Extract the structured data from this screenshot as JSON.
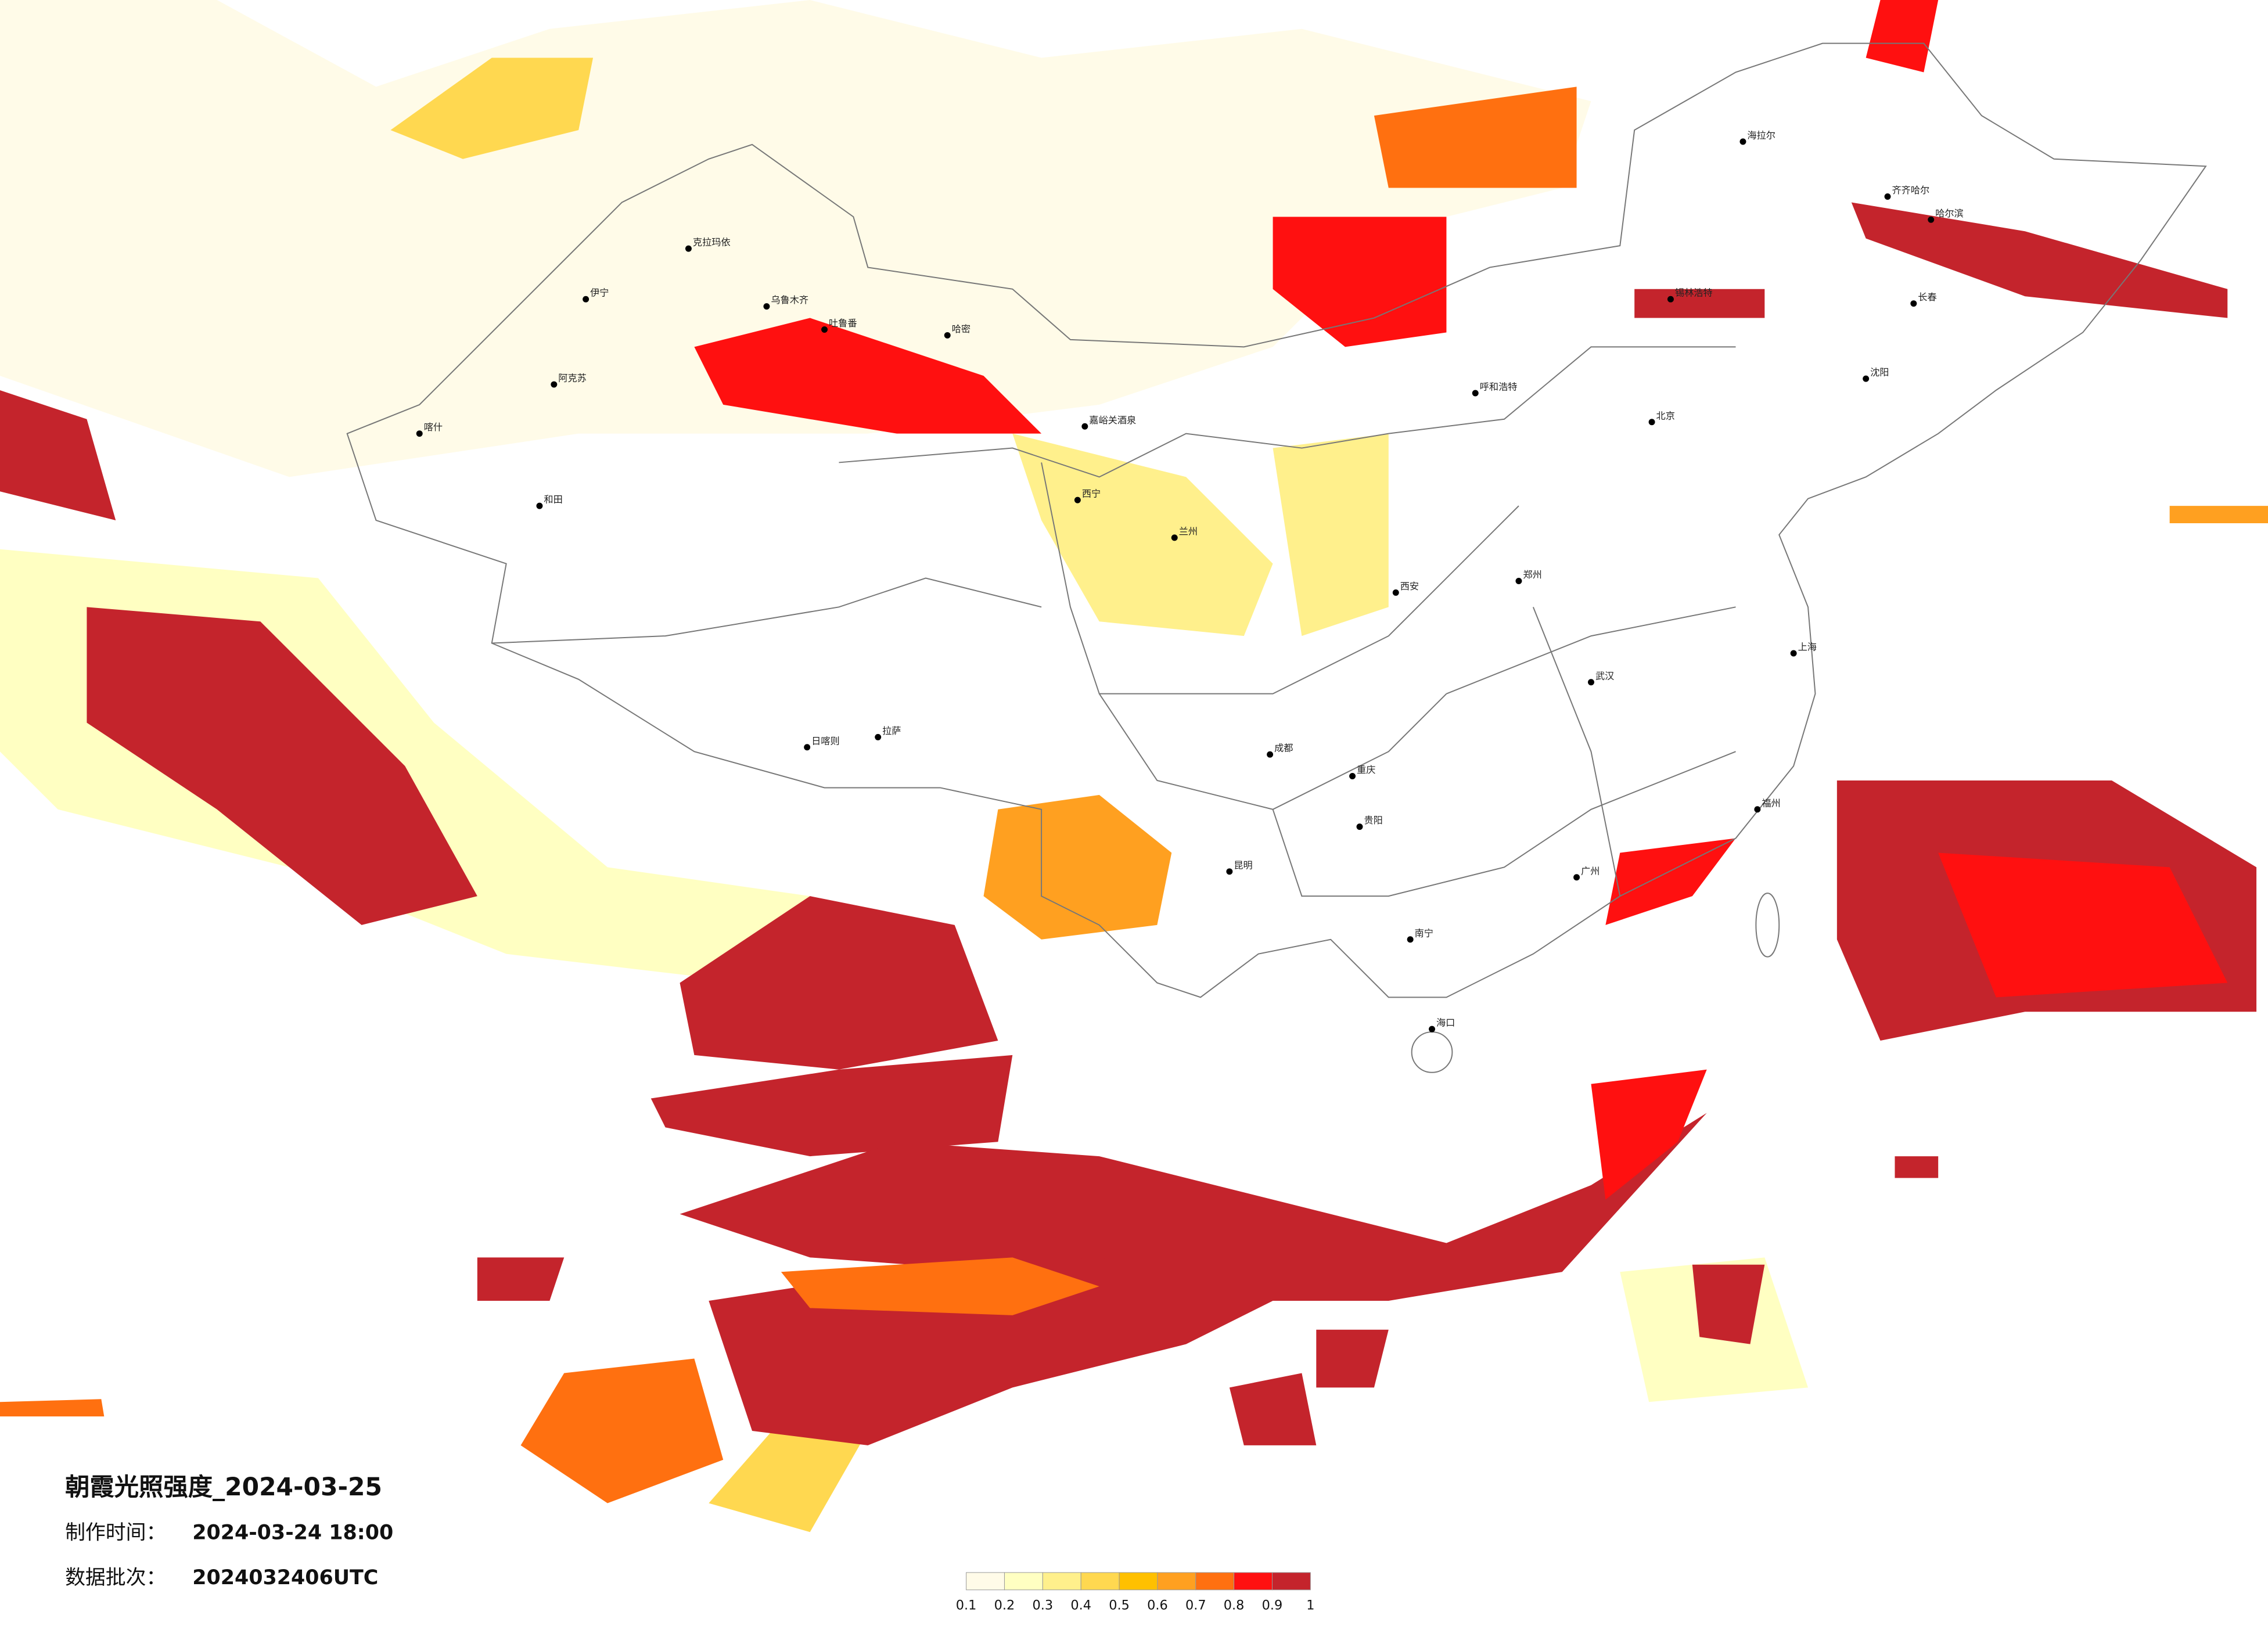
{
  "map": {
    "title": "朝霞光照强度_2024-03-25",
    "made_label": "制作时间：",
    "made_time": "2024-03-24 18:00",
    "batch_label": "数据批次：",
    "batch": "2024032406UTC",
    "cities": [
      "克拉玛依",
      "伊宁",
      "乌鲁木齐",
      "吐鲁番",
      "哈密",
      "阿克苏",
      "喀什",
      "和田",
      "嘉峪关酒泉",
      "西宁",
      "兰州",
      "拉萨",
      "日喀则",
      "成都",
      "重庆",
      "贵阳",
      "昆明",
      "南宁",
      "广州",
      "福州",
      "上海",
      "武汉",
      "郑州",
      "西安",
      "北京",
      "呼和浩特",
      "锡林浩特",
      "沈阳",
      "长春",
      "哈尔滨",
      "齐齐哈尔",
      "海拉尔",
      "海口"
    ],
    "legend": {
      "ticks": [
        0.1,
        0.2,
        0.3,
        0.4,
        0.5,
        0.6,
        0.7,
        0.8,
        0.9,
        1
      ],
      "colors": [
        "#fffbe8",
        "#ffffc2",
        "#fff08c",
        "#ffd850",
        "#ffc000",
        "#ffa020",
        "#ff7010",
        "#ff1010",
        "#c4242c"
      ]
    }
  }
}
